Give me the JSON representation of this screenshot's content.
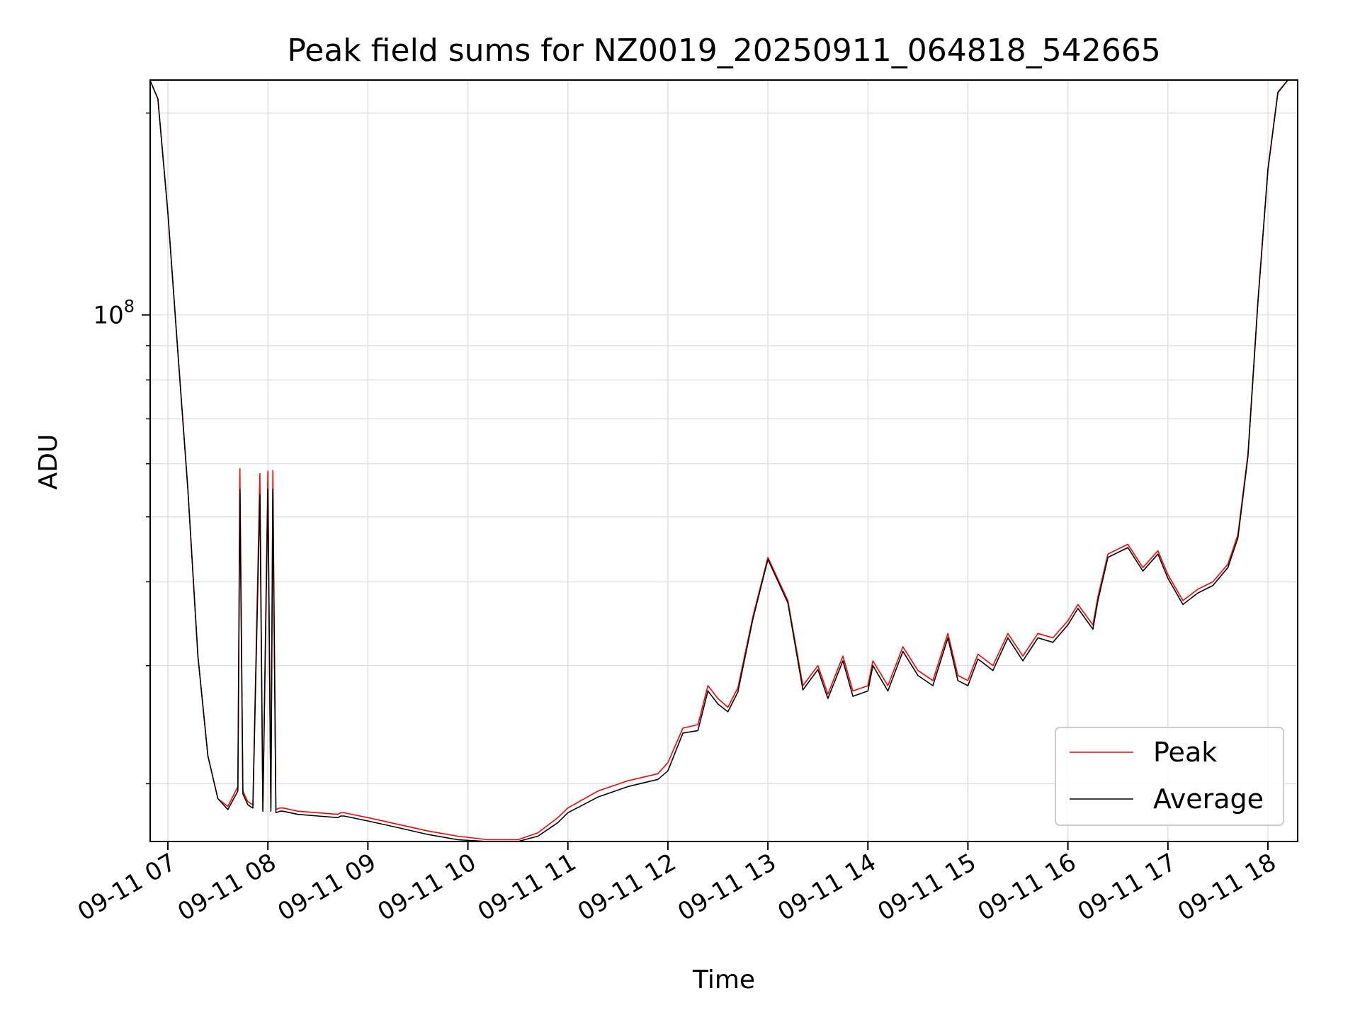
{
  "chart_data": {
    "type": "line",
    "title": "Peak field sums for NZ0019_20250911_064818_542665",
    "xlabel": "Time",
    "ylabel": "ADU",
    "yscale": "log",
    "ylim": [
      16400000,
      224000000
    ],
    "x_ticks": [
      "09-11 07",
      "09-11 08",
      "09-11 09",
      "09-11 10",
      "09-11 11",
      "09-11 12",
      "09-11 13",
      "09-11 14",
      "09-11 15",
      "09-11 16",
      "09-11 17",
      "09-11 18"
    ],
    "y_tick_label": {
      "base": "10",
      "exponent": "8",
      "value": 100000000
    },
    "grid": true,
    "legend_position": "lower right",
    "x": [
      6.82,
      6.9,
      7.0,
      7.1,
      7.2,
      7.3,
      7.4,
      7.5,
      7.6,
      7.7,
      7.72,
      7.75,
      7.8,
      7.85,
      7.92,
      7.95,
      8.0,
      8.03,
      8.05,
      8.08,
      8.12,
      8.15,
      8.3,
      8.5,
      8.7,
      8.73,
      8.76,
      9.0,
      9.3,
      9.6,
      9.9,
      10.2,
      10.5,
      10.7,
      10.9,
      11.0,
      11.3,
      11.6,
      11.9,
      12.0,
      12.15,
      12.3,
      12.4,
      12.5,
      12.6,
      12.7,
      12.85,
      13.0,
      13.2,
      13.35,
      13.5,
      13.6,
      13.75,
      13.85,
      14.0,
      14.05,
      14.2,
      14.35,
      14.5,
      14.65,
      14.8,
      14.9,
      15.0,
      15.1,
      15.25,
      15.4,
      15.55,
      15.7,
      15.85,
      16.0,
      16.1,
      16.25,
      16.3,
      16.4,
      16.6,
      16.75,
      16.9,
      17.0,
      17.15,
      17.3,
      17.45,
      17.6,
      17.7,
      17.8,
      17.9,
      18.0,
      18.1,
      18.2
    ],
    "series": [
      {
        "name": "Peak",
        "color": "#ff0000",
        "values": [
          224000000,
          210000000,
          142000000,
          88000000,
          55000000,
          31000000,
          22000000,
          19000000,
          18500000,
          19800000,
          59000000,
          19500000,
          18800000,
          18600000,
          58000000,
          18400000,
          58500000,
          18400000,
          58600000,
          18300000,
          18400000,
          18400000,
          18200000,
          18100000,
          18000000,
          18100000,
          18100000,
          17800000,
          17400000,
          17000000,
          16700000,
          16500000,
          16500000,
          16900000,
          17800000,
          18400000,
          19500000,
          20200000,
          20700000,
          21500000,
          24200000,
          24500000,
          28000000,
          26800000,
          26000000,
          27800000,
          35500000,
          43500000,
          37500000,
          28000000,
          30000000,
          27200000,
          31000000,
          27500000,
          28000000,
          30500000,
          28000000,
          32000000,
          29500000,
          28500000,
          33500000,
          29000000,
          28500000,
          31200000,
          30000000,
          33500000,
          31000000,
          33500000,
          33000000,
          35000000,
          37000000,
          34500000,
          38000000,
          44000000,
          45500000,
          42000000,
          44500000,
          41000000,
          37500000,
          39000000,
          40000000,
          42500000,
          47000000,
          62000000,
          105000000,
          165000000,
          215000000,
          224000000
        ]
      },
      {
        "name": "Average",
        "color": "#000000",
        "values": [
          224000000,
          210000000,
          142000000,
          88000000,
          55000000,
          31000000,
          22000000,
          19000000,
          18300000,
          19500000,
          55000000,
          19300000,
          18600000,
          18400000,
          54000000,
          18200000,
          55000000,
          18200000,
          55000000,
          18100000,
          18200000,
          18200000,
          18000000,
          17900000,
          17800000,
          17900000,
          17900000,
          17600000,
          17200000,
          16800000,
          16500000,
          16400000,
          16400000,
          16700000,
          17500000,
          18100000,
          19100000,
          19800000,
          20300000,
          20900000,
          23800000,
          24000000,
          27500000,
          26300000,
          25600000,
          27400000,
          35200000,
          43200000,
          37200000,
          27600000,
          29600000,
          26800000,
          30500000,
          27000000,
          27500000,
          30000000,
          27500000,
          31500000,
          29000000,
          28000000,
          33000000,
          28500000,
          28000000,
          30700000,
          29500000,
          33000000,
          30500000,
          33000000,
          32500000,
          34500000,
          36500000,
          34000000,
          37500000,
          43500000,
          45000000,
          41500000,
          44000000,
          40500000,
          37000000,
          38500000,
          39500000,
          42000000,
          46500000,
          61500000,
          104500000,
          164500000,
          214500000,
          224000000
        ]
      }
    ]
  }
}
